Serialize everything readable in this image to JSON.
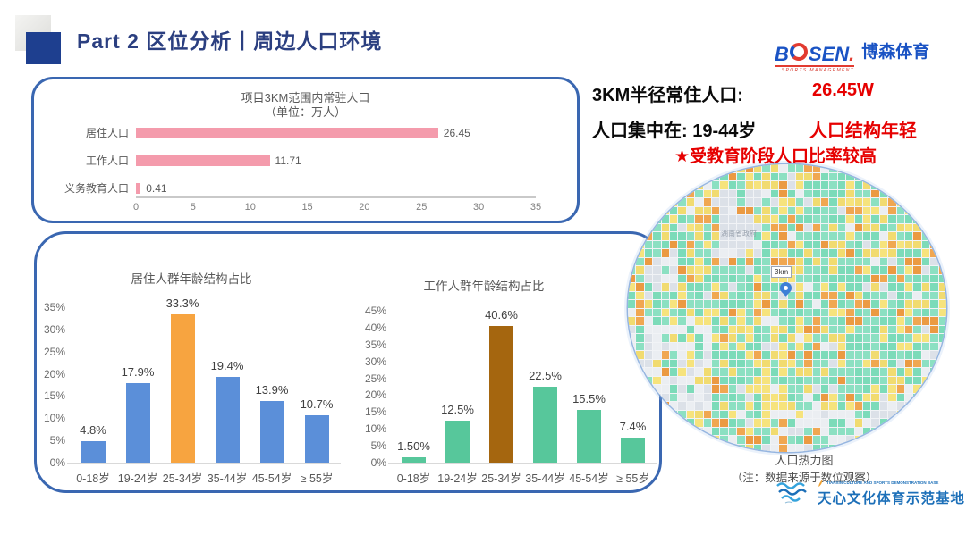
{
  "header": {
    "title": "Part 2 区位分析丨周边人口环境"
  },
  "logos": {
    "bosen": {
      "b": "B",
      "sen": "SEN",
      "dot": ".",
      "sub": "SPORTS MANAGEMENT",
      "cn": "博森体育"
    },
    "tianxin": {
      "en": "TIANXIN CULTURE AND SPORTS DEMONSTRATION BASE",
      "cn": "天心文化体育示范基地"
    }
  },
  "summary": {
    "row1_label": "3KM半径常住人口:",
    "row1_value": "26.45W",
    "row2_label": "人口集中在: 19-44岁",
    "row2_value": "人口结构年轻",
    "row3": "★受教育阶段人口比率较高"
  },
  "heatmap": {
    "caption": "人口热力图",
    "note": "（注：数据来源于数位观察）",
    "pin_label": "3km",
    "map_label": "湖南省政府",
    "seed": 20240521,
    "grid": {
      "cols": 38,
      "rows": 34
    },
    "colors": {
      "green": "#7CDBB9",
      "green2": "#8CE0C2",
      "yellow": "#F6E37D",
      "yellow2": "#F1DB70",
      "orange": "#F0A751",
      "orange2": "#EB9A42",
      "map": "#DCE1E8",
      "map_light": "#EBEEF2"
    },
    "weights": {
      "green": 0.52,
      "yellow": 0.26,
      "orange": 0.14,
      "map": 0.08
    },
    "patches": [
      {
        "c0": 11,
        "r0": 3,
        "c1": 15,
        "r1": 10,
        "color": "map",
        "density": 0.85
      },
      {
        "c0": 2,
        "r0": 11,
        "c1": 5,
        "r1": 14,
        "color": "map",
        "density": 0.8
      },
      {
        "c0": 0,
        "r0": 19,
        "c1": 9,
        "r1": 28,
        "color": "map_light",
        "density": 0.55
      },
      {
        "c0": 29,
        "r0": 27,
        "c1": 34,
        "r1": 31,
        "color": "map",
        "density": 0.7
      },
      {
        "c0": 17,
        "r0": 29,
        "c1": 27,
        "r1": 33,
        "color": "map_light",
        "density": 0.5
      }
    ]
  },
  "chart_data": [
    {
      "type": "bar",
      "orientation": "horizontal",
      "title": "项目3KM范围内常驻人口",
      "subtitle": "（单位：万人）",
      "categories": [
        "居住人口",
        "工作人口",
        "义务教育人口"
      ],
      "values": [
        26.45,
        11.71,
        0.41
      ],
      "value_labels": [
        "26.45",
        "11.71",
        "0.41"
      ],
      "xlim": [
        0,
        35
      ],
      "xticks": [
        0,
        5,
        10,
        15,
        20,
        25,
        30,
        35
      ],
      "bar_color": "#F49BAC",
      "grid": false,
      "legend_position": "none"
    },
    {
      "type": "bar",
      "title": "居住人群年龄结构占比",
      "categories": [
        "0-18岁",
        "19-24岁",
        "25-34岁",
        "35-44岁",
        "45-54岁",
        "≥ 55岁"
      ],
      "values": [
        4.8,
        17.9,
        33.3,
        19.4,
        13.9,
        10.7
      ],
      "value_labels": [
        "4.8%",
        "17.9%",
        "33.3%",
        "19.4%",
        "13.9%",
        "10.7%"
      ],
      "ylim": [
        0,
        35
      ],
      "ytick_step": 5,
      "bar_color": "#5B8FD9",
      "highlight_index": 2,
      "highlight_color": "#F7A440",
      "grid": false,
      "legend_position": "none"
    },
    {
      "type": "bar",
      "title": "工作人群年龄结构占比",
      "categories": [
        "0-18岁",
        "19-24岁",
        "25-34岁",
        "35-44岁",
        "45-54岁",
        "≥ 55岁"
      ],
      "values": [
        1.5,
        12.5,
        40.6,
        22.5,
        15.5,
        7.4
      ],
      "value_labels": [
        "1.50%",
        "12.5%",
        "40.6%",
        "22.5%",
        "15.5%",
        "7.4%"
      ],
      "ylim": [
        0,
        45
      ],
      "ytick_step": 5,
      "bar_color": "#57C79B",
      "highlight_index": 2,
      "highlight_color": "#A5660F",
      "grid": false,
      "legend_position": "none"
    }
  ]
}
